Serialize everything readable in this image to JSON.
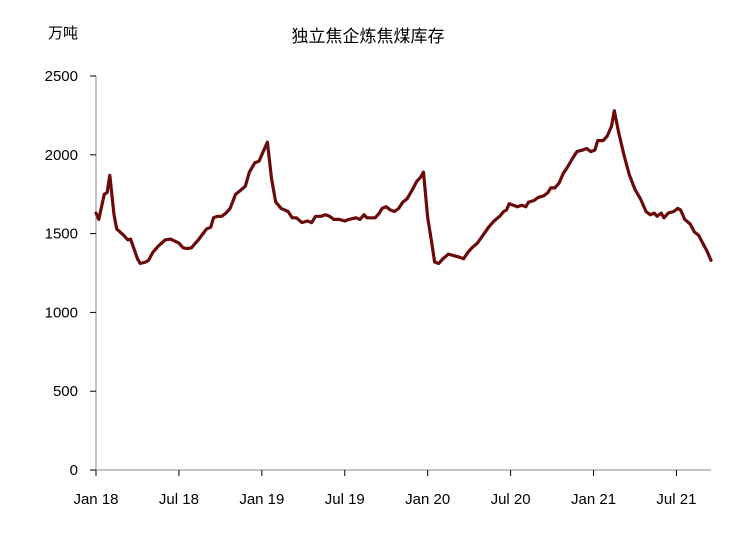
{
  "chart_data": {
    "type": "line",
    "title": "独立焦企炼焦煤库存",
    "ylabel": "万吨",
    "xlabel": "",
    "ylim": [
      0,
      2500
    ],
    "yticks": [
      0,
      500,
      1000,
      1500,
      2000,
      2500
    ],
    "x_unit": "months since Jan 2018",
    "xlim": [
      0,
      44.5
    ],
    "xticks": [
      {
        "x": 0,
        "label": "Jan 18"
      },
      {
        "x": 6,
        "label": "Jul 18"
      },
      {
        "x": 12,
        "label": "Jan 19"
      },
      {
        "x": 18,
        "label": "Jul 19"
      },
      {
        "x": 24,
        "label": "Jan 20"
      },
      {
        "x": 30,
        "label": "Jul 20"
      },
      {
        "x": 36,
        "label": "Jan 21"
      },
      {
        "x": 42,
        "label": "Jul 21"
      }
    ],
    "grid": false,
    "color": "#6b0a0a",
    "series": [
      {
        "name": "独立焦企炼焦煤库存",
        "x": [
          0,
          0.2,
          0.6,
          0.8,
          1.0,
          1.3,
          1.5,
          2.0,
          2.3,
          2.5,
          3.0,
          3.2,
          3.6,
          3.8,
          4.1,
          4.5,
          5.0,
          5.4,
          6.0,
          6.3,
          6.6,
          6.9,
          7.4,
          8.0,
          8.3,
          8.5,
          8.8,
          9.1,
          9.4,
          9.7,
          10.1,
          10.4,
          10.8,
          11.1,
          11.5,
          11.8,
          12.1,
          12.4,
          12.7,
          13.0,
          13.4,
          13.9,
          14.2,
          14.5,
          14.9,
          15.3,
          15.6,
          15.9,
          16.3,
          16.6,
          16.9,
          17.2,
          17.6,
          18.0,
          18.3,
          18.8,
          19.1,
          19.4,
          19.6,
          19.9,
          20.2,
          20.5,
          20.7,
          21.0,
          21.3,
          21.6,
          21.9,
          22.2,
          22.5,
          22.9,
          23.2,
          23.5,
          23.7,
          24.0,
          24.3,
          24.5,
          24.8,
          25.1,
          25.5,
          25.9,
          26.3,
          26.6,
          26.9,
          27.2,
          27.6,
          28.0,
          28.4,
          28.8,
          29.2,
          29.5,
          29.7,
          29.9,
          30.2,
          30.5,
          30.8,
          31.1,
          31.3,
          31.7,
          32.0,
          32.4,
          32.7,
          32.9,
          33.2,
          33.5,
          33.8,
          34.1,
          34.5,
          34.8,
          35.2,
          35.5,
          35.8,
          36.1,
          36.3,
          36.7,
          37.0,
          37.3,
          37.5,
          37.8,
          38.2,
          38.6,
          39.0,
          39.4,
          39.8,
          40.1,
          40.4,
          40.6,
          40.9,
          41.1,
          41.4,
          41.8,
          42.1,
          42.3,
          42.6,
          43.0,
          43.3,
          43.6,
          43.9,
          44.2,
          44.5
        ],
        "y": [
          1630,
          1590,
          1750,
          1760,
          1870,
          1620,
          1530,
          1490,
          1460,
          1465,
          1340,
          1310,
          1320,
          1330,
          1380,
          1420,
          1460,
          1465,
          1440,
          1410,
          1405,
          1410,
          1460,
          1530,
          1540,
          1600,
          1610,
          1610,
          1630,
          1660,
          1750,
          1770,
          1800,
          1890,
          1950,
          1960,
          2020,
          2080,
          1850,
          1700,
          1660,
          1640,
          1600,
          1600,
          1570,
          1580,
          1570,
          1610,
          1610,
          1620,
          1610,
          1590,
          1590,
          1580,
          1590,
          1600,
          1590,
          1620,
          1600,
          1600,
          1600,
          1630,
          1660,
          1670,
          1650,
          1640,
          1660,
          1700,
          1720,
          1780,
          1830,
          1860,
          1890,
          1600,
          1440,
          1320,
          1310,
          1340,
          1370,
          1360,
          1350,
          1340,
          1380,
          1410,
          1440,
          1490,
          1540,
          1580,
          1610,
          1640,
          1650,
          1690,
          1680,
          1670,
          1680,
          1670,
          1700,
          1710,
          1730,
          1740,
          1760,
          1790,
          1790,
          1820,
          1880,
          1920,
          1980,
          2020,
          2030,
          2040,
          2020,
          2030,
          2090,
          2090,
          2120,
          2180,
          2280,
          2150,
          2000,
          1870,
          1780,
          1720,
          1640,
          1620,
          1630,
          1610,
          1630,
          1600,
          1630,
          1640,
          1660,
          1650,
          1590,
          1560,
          1510,
          1490,
          1440,
          1390,
          1330
        ]
      }
    ]
  }
}
